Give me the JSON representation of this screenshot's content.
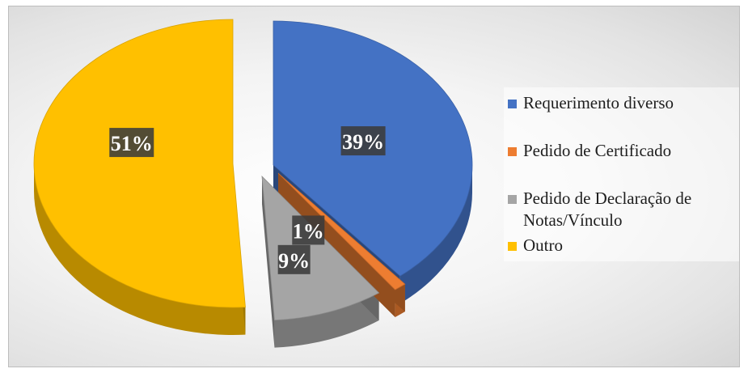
{
  "chart_data": {
    "type": "pie",
    "variant": "3d-exploded",
    "title": "",
    "legend_position": "right",
    "slices": [
      {
        "name": "Requerimento diverso",
        "value": 39,
        "label": "39%",
        "color": "#4472C4",
        "exploded": true
      },
      {
        "name": "Pedido de Certificado",
        "value": 1,
        "label": "1%",
        "color": "#ED7D31",
        "exploded": true
      },
      {
        "name": "Pedido de Declaração de Notas/Vínculo",
        "value": 9,
        "label": "9%",
        "color": "#A5A5A5",
        "exploded": true
      },
      {
        "name": "Outro",
        "value": 51,
        "label": "51%",
        "color": "#FFC000",
        "exploded": true
      }
    ]
  }
}
